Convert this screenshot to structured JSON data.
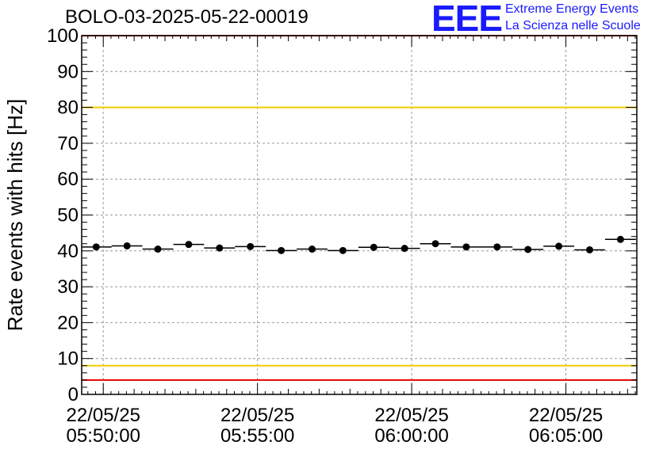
{
  "chart_data": {
    "type": "scatter",
    "title": "BOLO-03-2025-05-22-00019",
    "ylabel": "Rate events with hits [Hz]",
    "xlabel": "",
    "ylim": [
      0,
      100
    ],
    "yticks": [
      0,
      10,
      20,
      30,
      40,
      50,
      60,
      70,
      80,
      90,
      100
    ],
    "xlim_minutes": [
      -0.7,
      17.3
    ],
    "xticks": [
      {
        "minute": 0,
        "date": "22/05/25",
        "time": "05:50:00"
      },
      {
        "minute": 5,
        "date": "22/05/25",
        "time": "05:55:00"
      },
      {
        "minute": 10,
        "date": "22/05/25",
        "time": "06:00:00"
      },
      {
        "minute": 15,
        "date": "22/05/25",
        "time": "06:05:00"
      }
    ],
    "grid": true,
    "bin_width_minutes": 1,
    "series": [
      {
        "name": "rate",
        "x_minutes": [
          -0.23,
          0.77,
          1.77,
          2.77,
          3.77,
          4.77,
          5.77,
          6.77,
          7.77,
          8.77,
          9.77,
          10.77,
          11.77,
          12.77,
          13.77,
          14.77,
          15.77,
          16.77
        ],
        "values": [
          41.1,
          41.4,
          40.5,
          41.8,
          40.8,
          41.2,
          40.1,
          40.5,
          40.1,
          41.0,
          40.7,
          42.0,
          41.1,
          41.1,
          40.4,
          41.3,
          40.3,
          43.2
        ]
      }
    ],
    "reference_lines": [
      {
        "value": 80,
        "color": "#f2cc00"
      },
      {
        "value": 8,
        "color": "#f2cc00"
      },
      {
        "value": 4,
        "color": "#e60000"
      },
      {
        "value": 100,
        "color": "#e60000"
      }
    ]
  },
  "logo": {
    "mark": "EEE",
    "line1": "Extreme Energy Events",
    "line2": "La Scienza nelle Scuole"
  },
  "colors": {
    "marker": "#000000",
    "grid": "#999999",
    "logo": "#1a1aff"
  }
}
